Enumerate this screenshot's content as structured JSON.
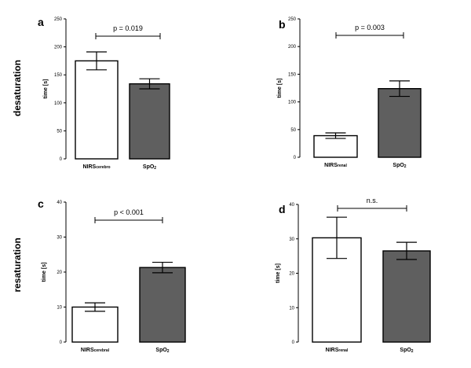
{
  "row_labels": [
    "desaturation",
    "resaturation"
  ],
  "chart_data": [
    {
      "type": "bar",
      "panel_label": "a",
      "ylabel": "time [s]",
      "ylim": [
        0,
        250
      ],
      "yticks": [
        0,
        50,
        100,
        150,
        200,
        250
      ],
      "categories": [
        {
          "main": "NIRS",
          "sub": "cerebro"
        },
        {
          "main": "SpO",
          "sub": "2"
        }
      ],
      "values": [
        175,
        134
      ],
      "errors": [
        16,
        9
      ],
      "fills": [
        "#ffffff",
        "#5f5f5f"
      ],
      "annotation": "p = 0.019"
    },
    {
      "type": "bar",
      "panel_label": "b",
      "ylabel": "time [s]",
      "ylim": [
        0,
        250
      ],
      "yticks": [
        0,
        50,
        100,
        150,
        200,
        250
      ],
      "categories": [
        {
          "main": "NIRS",
          "sub": "renal"
        },
        {
          "main": "SpO",
          "sub": "2"
        }
      ],
      "values": [
        39,
        124
      ],
      "errors": [
        5,
        14
      ],
      "fills": [
        "#ffffff",
        "#5f5f5f"
      ],
      "annotation": "p = 0.003"
    },
    {
      "type": "bar",
      "panel_label": "c",
      "ylabel": "time [s]",
      "ylim": [
        0,
        40
      ],
      "yticks": [
        0,
        10,
        20,
        30,
        40
      ],
      "categories": [
        {
          "main": "NIRS",
          "sub": "cerebral"
        },
        {
          "main": "SpO",
          "sub": "2"
        }
      ],
      "values": [
        10,
        21.3
      ],
      "errors": [
        1.2,
        1.5
      ],
      "fills": [
        "#ffffff",
        "#5f5f5f"
      ],
      "annotation": "p < 0.001"
    },
    {
      "type": "bar",
      "panel_label": "d",
      "ylabel": "time [s]",
      "ylim": [
        0,
        40
      ],
      "yticks": [
        0,
        10,
        20,
        30,
        40
      ],
      "categories": [
        {
          "main": "NIRS",
          "sub": "renal"
        },
        {
          "main": "SpO",
          "sub": "2"
        }
      ],
      "values": [
        30.3,
        26.5
      ],
      "errors": [
        6,
        2.5
      ],
      "fills": [
        "#ffffff",
        "#5f5f5f"
      ],
      "annotation": "n.s."
    }
  ]
}
